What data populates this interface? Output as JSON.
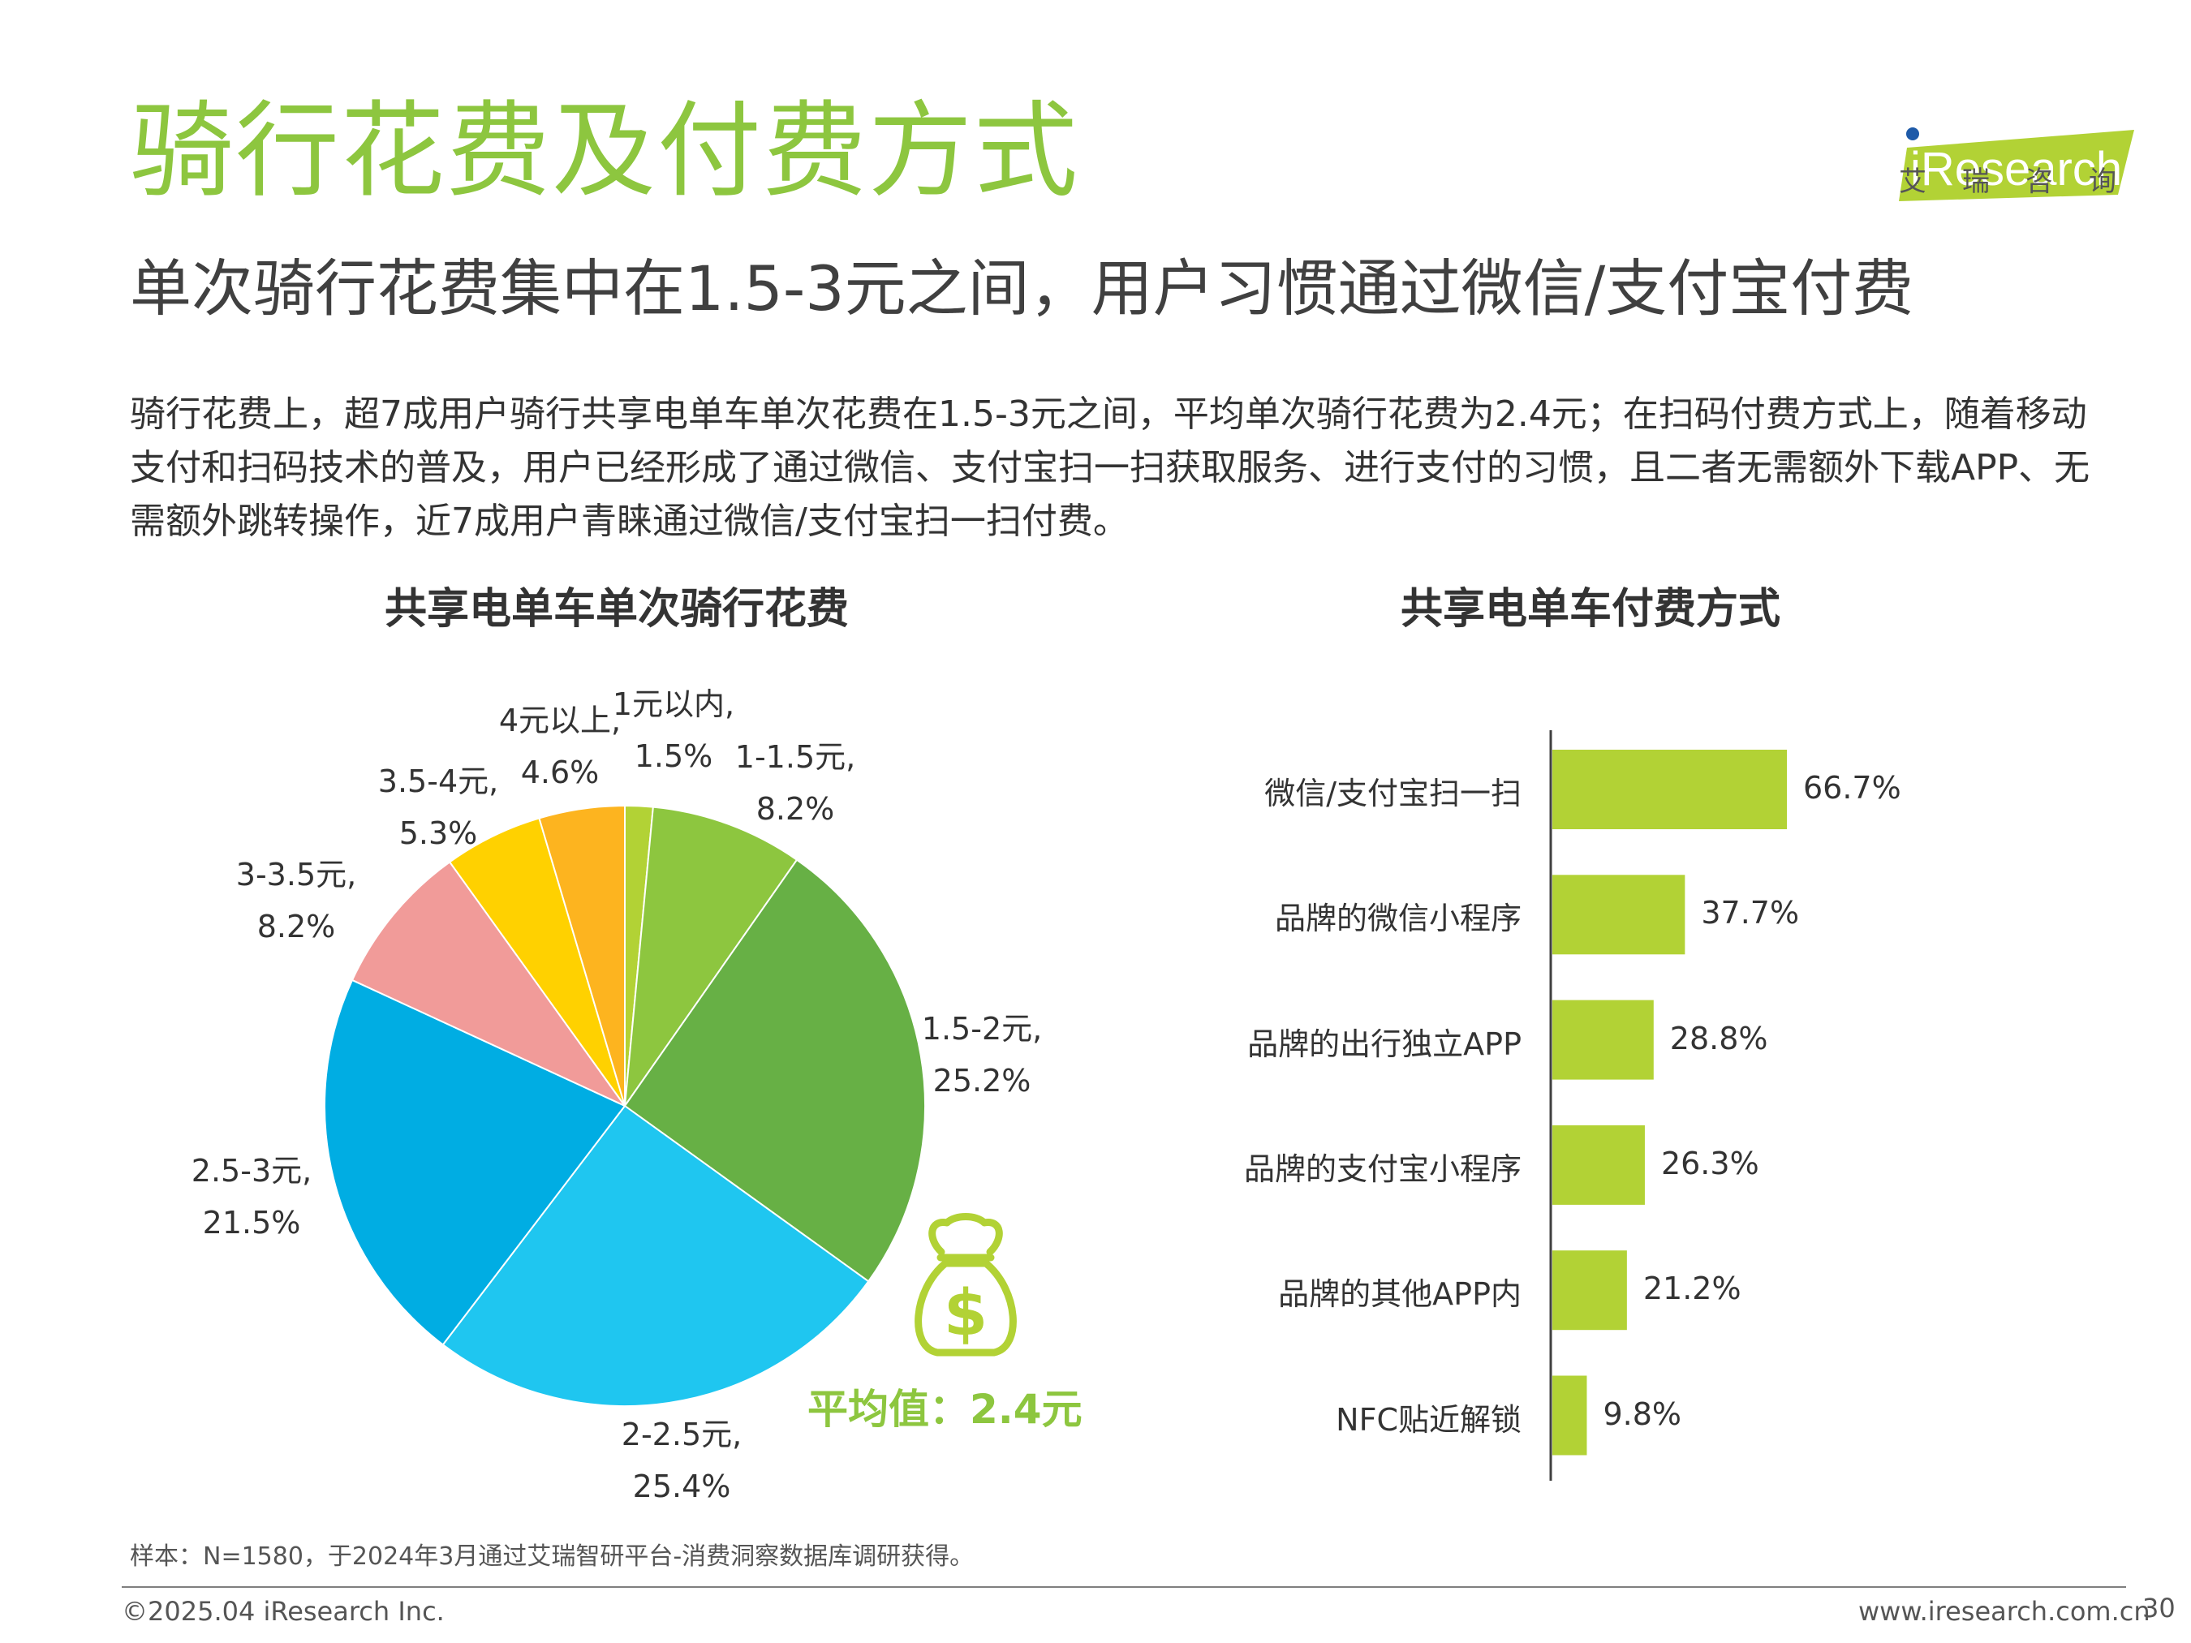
{
  "header": {
    "title": "骑行花费及付费方式",
    "subtitle": "单次骑行花费集中在1.5-3元之间，用户习惯通过微信/支付宝付费",
    "description": "骑行花费上，超7成用户骑行共享电单车单次花费在1.5-3元之间，平均单次骑行花费为2.4元；在扫码付费方式上，随着移动支付和扫码技术的普及，用户已经形成了通过微信、支付宝扫一扫获取服务、进行支付的习惯，且二者无需额外下载APP、无需额外跳转操作，近7成用户青睐通过微信/支付宝扫一扫付费。"
  },
  "logo": {
    "brand": "iResearch",
    "cn": "艾瑞咨询",
    "colors": {
      "green": "#B2D235",
      "blue": "#1E5AA8"
    }
  },
  "chart_data": [
    {
      "type": "pie",
      "title": "共享电单车单次骑行花费",
      "labels": [
        "1元以内",
        "1-1.5元",
        "1.5-2元",
        "2-2.5元",
        "2.5-3元",
        "3-3.5元",
        "3.5-4元",
        "4元以上"
      ],
      "values": [
        1.5,
        8.2,
        25.2,
        25.4,
        21.5,
        8.2,
        5.3,
        4.6
      ],
      "value_labels": [
        "1.5%",
        "8.2%",
        "25.2%",
        "25.4%",
        "21.5%",
        "8.2%",
        "5.3%",
        "4.6%"
      ],
      "colors": [
        "#B2D235",
        "#8DC63F",
        "#67B045",
        "#1FC6F0",
        "#00ADE3",
        "#F19B99",
        "#FFD100",
        "#FDB41F"
      ],
      "annotation": "平均值：2.4元",
      "annotation_icon": "money-bag-icon"
    },
    {
      "type": "bar",
      "orientation": "horizontal",
      "title": "共享电单车付费方式",
      "categories": [
        "微信/支付宝扫一扫",
        "品牌的微信小程序",
        "品牌的出行独立APP",
        "品牌的支付宝小程序",
        "品牌的其他APP内",
        "NFC贴近解锁"
      ],
      "values": [
        66.7,
        37.7,
        28.8,
        26.3,
        21.2,
        9.8
      ],
      "value_labels": [
        "66.7%",
        "37.7%",
        "28.8%",
        "26.3%",
        "21.2%",
        "9.8%"
      ],
      "color": "#B2D235",
      "xlim": [
        0,
        100
      ]
    }
  ],
  "footer": {
    "sample_note": "样本：N=1580，于2024年3月通过艾瑞智研平台-消费洞察数据库调研获得。",
    "copyright": "©2025.04 iResearch Inc.",
    "website": "www.iresearch.com.cn",
    "page_number": "30"
  }
}
